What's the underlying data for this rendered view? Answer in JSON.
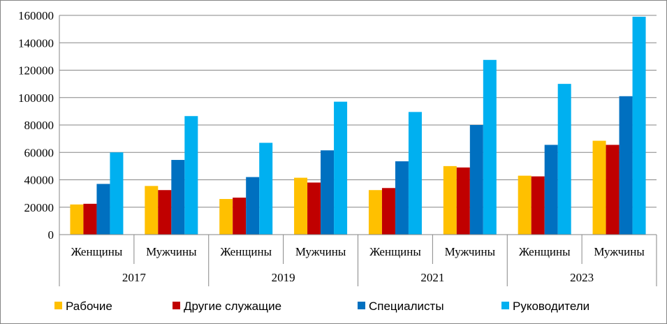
{
  "chart_data": {
    "type": "bar",
    "groups": [
      {
        "year": "2017",
        "categories": [
          "Женщины",
          "Мужчины"
        ]
      },
      {
        "year": "2019",
        "categories": [
          "Женщины",
          "Мужчины"
        ]
      },
      {
        "year": "2021",
        "categories": [
          "Женщины",
          "Мужчины"
        ]
      },
      {
        "year": "2023",
        "categories": [
          "Женщины",
          "Мужчины"
        ]
      }
    ],
    "series": [
      {
        "name": "Рабочие",
        "color": "#FFC000",
        "values": [
          22000,
          35500,
          26000,
          41500,
          32500,
          50000,
          43000,
          68500
        ]
      },
      {
        "name": "Другие служащие",
        "color": "#C00000",
        "values": [
          22500,
          32500,
          27000,
          38000,
          34000,
          49000,
          42500,
          65500
        ]
      },
      {
        "name": "Специалисты",
        "color": "#0070C0",
        "values": [
          37000,
          54500,
          42000,
          61500,
          53500,
          80000,
          65500,
          101000
        ]
      },
      {
        "name": "Руководители",
        "color": "#00B0F0",
        "values": [
          60000,
          86500,
          67000,
          97000,
          89500,
          127500,
          110000,
          159000
        ]
      }
    ],
    "ylim": [
      0,
      160000
    ],
    "yticks": [
      "0",
      "20000",
      "40000",
      "60000",
      "80000",
      "100000",
      "120000",
      "140000",
      "160000"
    ],
    "grid": true,
    "legend": "bottom"
  }
}
